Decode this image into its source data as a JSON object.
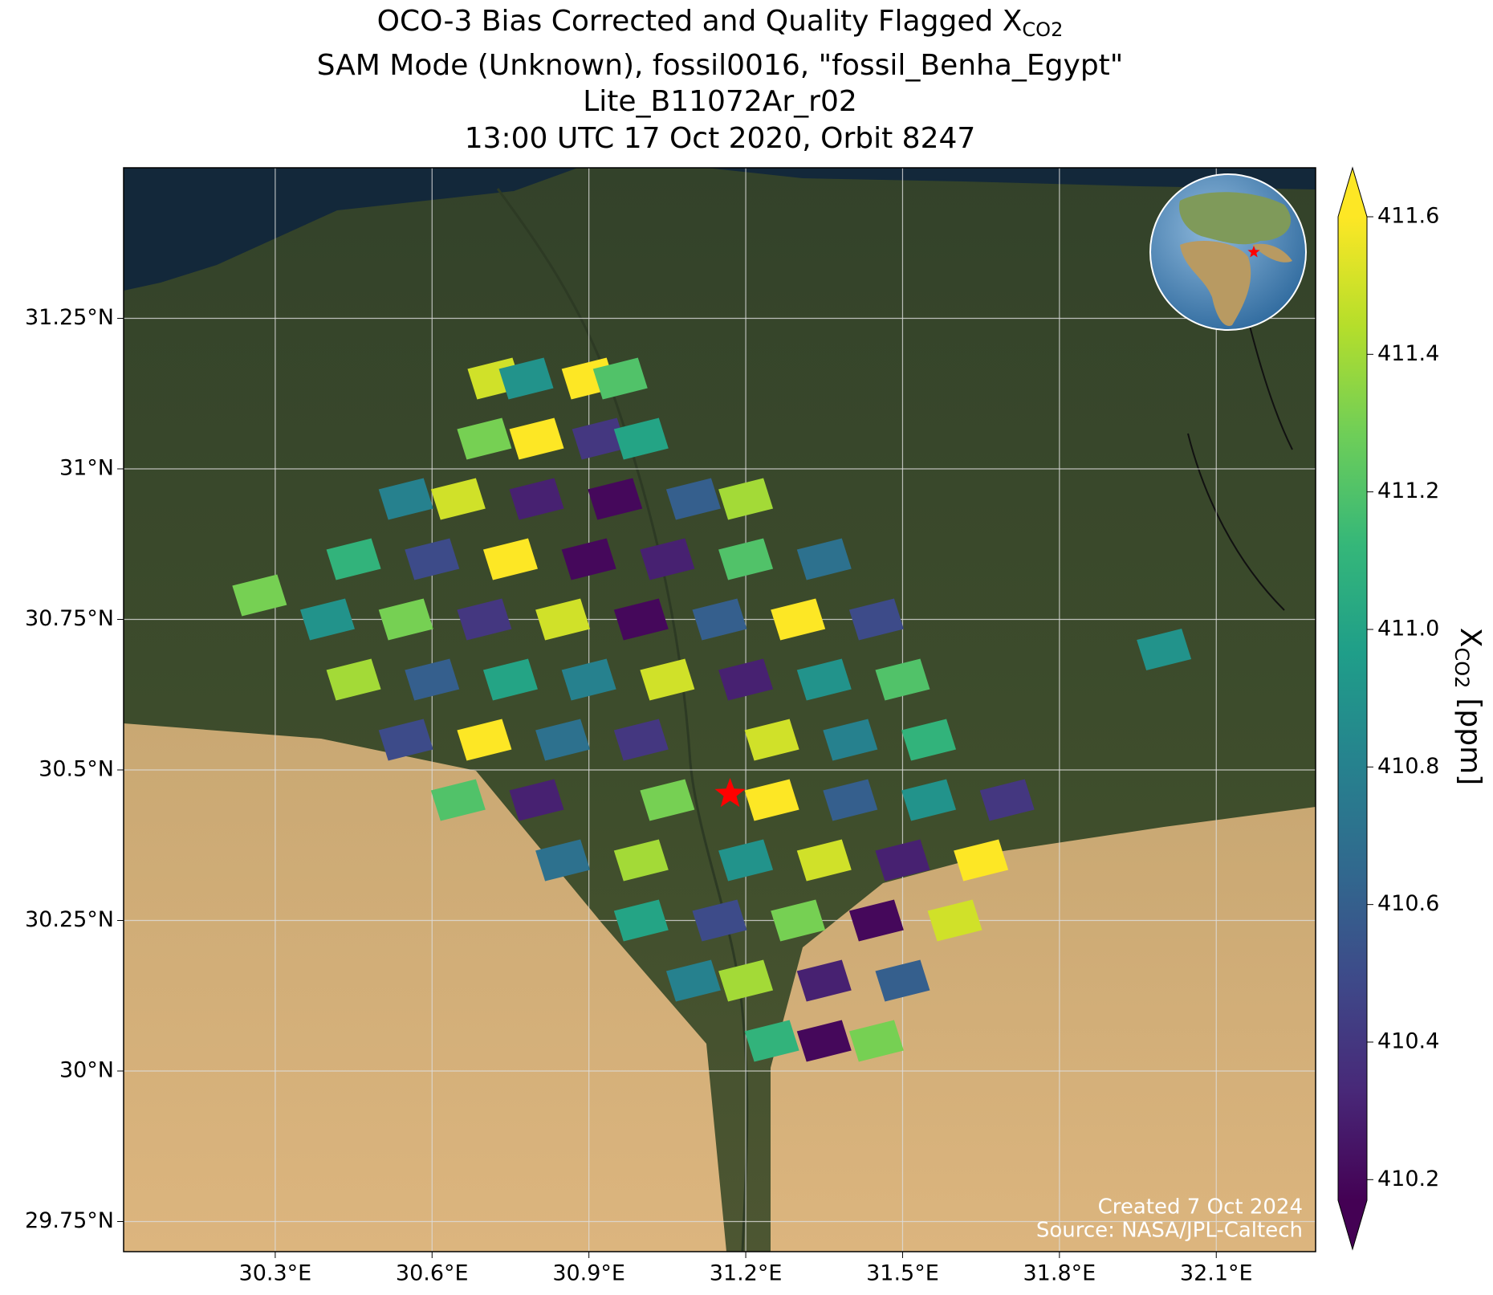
{
  "chart_data": {
    "type": "map",
    "title": {
      "text": "OCO-3 Bias Corrected and Quality Flagged X",
      "subscript": "CO2"
    },
    "subtitle": [
      "SAM Mode (Unknown), fossil0016, \"fossil_Benha_Egypt\"",
      "Lite_B11072Ar_r02",
      "13:00 UTC 17 Oct 2020, Orbit 8247"
    ],
    "xlim": [
      30.01,
      32.29
    ],
    "ylim": [
      29.7,
      31.5
    ],
    "xticks": [
      {
        "value": 30.3,
        "label": "30.3°E"
      },
      {
        "value": 30.6,
        "label": "30.6°E"
      },
      {
        "value": 30.9,
        "label": "30.9°E"
      },
      {
        "value": 31.2,
        "label": "31.2°E"
      },
      {
        "value": 31.5,
        "label": "31.5°E"
      },
      {
        "value": 31.8,
        "label": "31.8°E"
      },
      {
        "value": 32.1,
        "label": "32.1°E"
      }
    ],
    "yticks": [
      {
        "value": 29.75,
        "label": "29.75°N"
      },
      {
        "value": 30,
        "label": "30°N"
      },
      {
        "value": 30.25,
        "label": "30.25°N"
      },
      {
        "value": 30.5,
        "label": "30.5°N"
      },
      {
        "value": 30.75,
        "label": "30.75°N"
      },
      {
        "value": 31,
        "label": "31°N"
      },
      {
        "value": 31.25,
        "label": "31.25°N"
      }
    ],
    "grid": true,
    "footprints": {
      "lon": [
        30.72,
        30.78,
        30.9,
        30.96,
        30.7,
        30.8,
        30.92,
        31.0,
        30.55,
        30.65,
        30.8,
        30.95,
        31.1,
        31.2,
        30.45,
        30.6,
        30.75,
        30.9,
        31.05,
        31.2,
        31.35,
        30.4,
        30.55,
        30.7,
        30.85,
        31.0,
        31.15,
        31.3,
        31.45,
        30.45,
        30.6,
        30.75,
        30.9,
        31.05,
        31.2,
        31.35,
        31.5,
        30.55,
        30.7,
        30.85,
        31.0,
        31.25,
        31.4,
        31.55,
        30.65,
        30.8,
        31.05,
        31.25,
        31.4,
        31.55,
        31.7,
        30.85,
        31.0,
        31.2,
        31.35,
        31.5,
        31.65,
        31.0,
        31.15,
        31.3,
        31.45,
        31.6,
        31.1,
        31.2,
        31.35,
        31.5,
        31.25,
        31.35,
        31.45,
        30.27,
        32.0
      ],
      "lat": [
        31.15,
        31.15,
        31.15,
        31.15,
        31.05,
        31.05,
        31.05,
        31.05,
        30.95,
        30.95,
        30.95,
        30.95,
        30.95,
        30.95,
        30.85,
        30.85,
        30.85,
        30.85,
        30.85,
        30.85,
        30.85,
        30.75,
        30.75,
        30.75,
        30.75,
        30.75,
        30.75,
        30.75,
        30.75,
        30.65,
        30.65,
        30.65,
        30.65,
        30.65,
        30.65,
        30.65,
        30.65,
        30.55,
        30.55,
        30.55,
        30.55,
        30.55,
        30.55,
        30.55,
        30.45,
        30.45,
        30.45,
        30.45,
        30.45,
        30.45,
        30.45,
        30.35,
        30.35,
        30.35,
        30.35,
        30.35,
        30.35,
        30.25,
        30.25,
        30.25,
        30.25,
        30.25,
        30.15,
        30.15,
        30.15,
        30.15,
        30.05,
        30.05,
        30.05,
        30.79,
        30.7
      ],
      "values": [
        411.5,
        410.9,
        411.6,
        411.2,
        411.3,
        411.6,
        410.4,
        411.0,
        410.8,
        411.5,
        410.3,
        410.2,
        410.6,
        411.4,
        411.1,
        410.5,
        411.6,
        410.2,
        410.3,
        411.2,
        410.7,
        410.9,
        411.3,
        410.4,
        411.5,
        410.2,
        410.6,
        411.6,
        410.5,
        411.4,
        410.6,
        411.0,
        410.8,
        411.5,
        410.3,
        410.9,
        411.2,
        410.5,
        411.6,
        410.7,
        410.4,
        411.5,
        410.8,
        411.1,
        411.2,
        410.3,
        411.3,
        411.6,
        410.6,
        410.9,
        410.4,
        410.7,
        411.4,
        410.9,
        411.5,
        410.3,
        411.6,
        411.0,
        410.5,
        411.3,
        410.2,
        411.5,
        410.8,
        411.4,
        410.3,
        410.6,
        411.1,
        410.2,
        411.3,
        411.3,
        410.9
      ]
    },
    "target": {
      "lon": 31.17,
      "lat": 30.46
    },
    "colorbar": {
      "label": "X",
      "subscript": "CO2",
      "unit": "[ppm]",
      "clim": [
        410.17,
        411.6
      ],
      "ticks": [
        410.2,
        410.4,
        410.6,
        410.8,
        {
          "value": 411,
          "label": "411.0"
        },
        411.2,
        411.4,
        411.6
      ],
      "extend": "both"
    },
    "credits": [
      "Created 7 Oct 2024",
      "Source: NASA/JPL-Caltech"
    ]
  }
}
